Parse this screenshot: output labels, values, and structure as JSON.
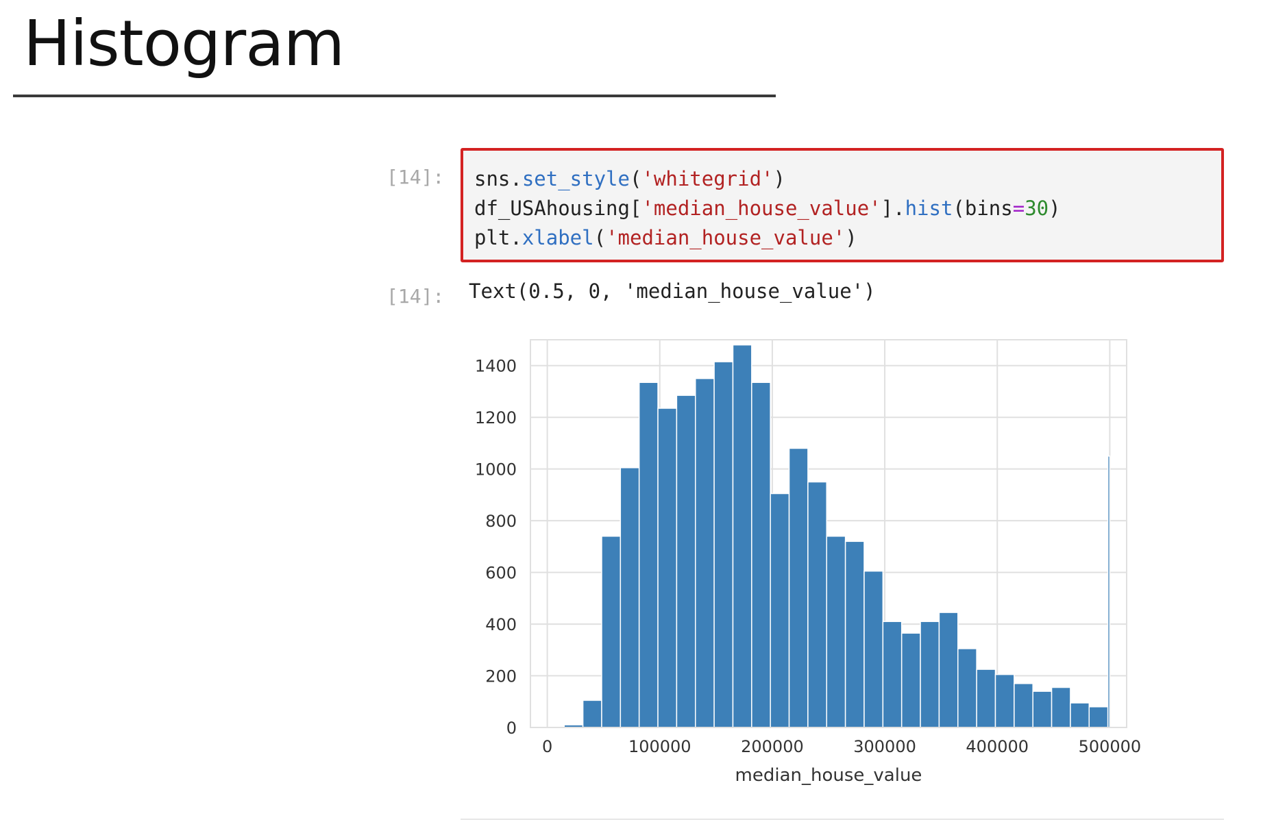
{
  "slide": {
    "title": "Histogram"
  },
  "cells": {
    "input": {
      "prompt": "[14]:",
      "lines": [
        [
          {
            "t": "sns.",
            "c": "plain"
          },
          {
            "t": "set_style",
            "c": "fn"
          },
          {
            "t": "(",
            "c": "plain"
          },
          {
            "t": "'whitegrid'",
            "c": "str"
          },
          {
            "t": ")",
            "c": "plain"
          }
        ],
        [
          {
            "t": "df_USAhousing[",
            "c": "plain"
          },
          {
            "t": "'median_house_value'",
            "c": "str"
          },
          {
            "t": "].",
            "c": "plain"
          },
          {
            "t": "hist",
            "c": "fn"
          },
          {
            "t": "(bins",
            "c": "plain"
          },
          {
            "t": "=",
            "c": "op"
          },
          {
            "t": "30",
            "c": "num"
          },
          {
            "t": ")",
            "c": "plain"
          }
        ],
        [
          {
            "t": "plt.",
            "c": "plain"
          },
          {
            "t": "xlabel",
            "c": "fn"
          },
          {
            "t": "(",
            "c": "plain"
          },
          {
            "t": "'median_house_value'",
            "c": "str"
          },
          {
            "t": ")",
            "c": "plain"
          }
        ]
      ]
    },
    "output": {
      "prompt": "[14]:",
      "text": "Text(0.5, 0, 'median_house_value')"
    }
  },
  "colors": {
    "bar": "#3d80b8",
    "grid": "#e0e0e0",
    "cell_border": "#d32222",
    "cell_bg": "#f4f4f4"
  },
  "chart_data": {
    "type": "bar",
    "xlabel": "median_house_value",
    "ylabel": "",
    "xlim": [
      -15000,
      515000
    ],
    "ylim": [
      0,
      1500
    ],
    "xticks": [
      0,
      100000,
      200000,
      300000,
      400000,
      500000
    ],
    "yticks": [
      0,
      200,
      400,
      600,
      800,
      1000,
      1200,
      1400
    ],
    "grid": true,
    "bin_edges": [
      14999,
      31666,
      48333,
      65000,
      81666,
      98333,
      115000,
      131666,
      148333,
      165000,
      181666,
      198333,
      215000,
      231666,
      248333,
      265000,
      281666,
      298333,
      315000,
      331666,
      348333,
      365000,
      381666,
      398333,
      415000,
      431666,
      448333,
      465000,
      481666,
      498333,
      500001
    ],
    "values": [
      10,
      105,
      740,
      1005,
      1335,
      1235,
      1285,
      1350,
      1415,
      1480,
      1335,
      905,
      1080,
      950,
      740,
      720,
      605,
      410,
      365,
      410,
      445,
      305,
      225,
      205,
      170,
      140,
      155,
      95,
      80,
      1050
    ]
  }
}
